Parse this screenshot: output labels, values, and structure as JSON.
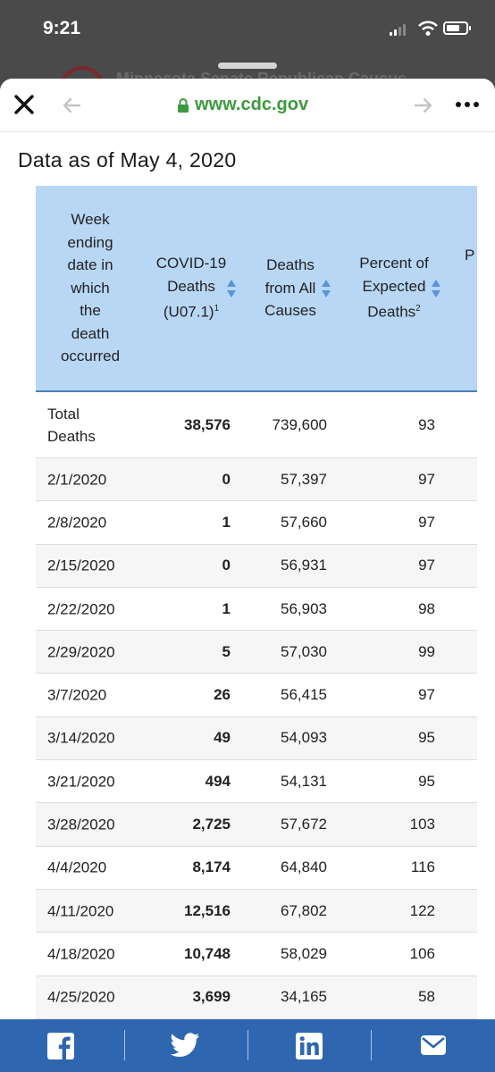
{
  "status_bar": {
    "time": "9:21"
  },
  "background_page": {
    "title": "Minnesota Senate Republican Caucus"
  },
  "browser": {
    "url": "www.cdc.gov"
  },
  "page": {
    "heading": "Data as of May 4, 2020"
  },
  "table": {
    "headers": {
      "week": "Week ending date in which the death occurred",
      "covid": "COVID-19 Deaths (U07.1)",
      "covid_sup": "1",
      "all_causes": "Deaths from All Causes",
      "percent": "Percent of Expected Deaths",
      "percent_sup": "2",
      "partial": "P"
    },
    "rows": [
      {
        "week": "Total Deaths",
        "covid": "38,576",
        "all": "739,600",
        "pct": "93"
      },
      {
        "week": "2/1/2020",
        "covid": "0",
        "all": "57,397",
        "pct": "97"
      },
      {
        "week": "2/8/2020",
        "covid": "1",
        "all": "57,660",
        "pct": "97"
      },
      {
        "week": "2/15/2020",
        "covid": "0",
        "all": "56,931",
        "pct": "97"
      },
      {
        "week": "2/22/2020",
        "covid": "1",
        "all": "56,903",
        "pct": "98"
      },
      {
        "week": "2/29/2020",
        "covid": "5",
        "all": "57,030",
        "pct": "99"
      },
      {
        "week": "3/7/2020",
        "covid": "26",
        "all": "56,415",
        "pct": "97"
      },
      {
        "week": "3/14/2020",
        "covid": "49",
        "all": "54,093",
        "pct": "95"
      },
      {
        "week": "3/21/2020",
        "covid": "494",
        "all": "54,131",
        "pct": "95"
      },
      {
        "week": "3/28/2020",
        "covid": "2,725",
        "all": "57,672",
        "pct": "103"
      },
      {
        "week": "4/4/2020",
        "covid": "8,174",
        "all": "64,840",
        "pct": "116"
      },
      {
        "week": "4/11/2020",
        "covid": "12,516",
        "all": "67,802",
        "pct": "122"
      },
      {
        "week": "4/18/2020",
        "covid": "10,748",
        "all": "58,029",
        "pct": "106"
      },
      {
        "week": "4/25/2020",
        "covid": "3,699",
        "all": "34,165",
        "pct": "58"
      }
    ]
  },
  "share_bar": {
    "items": [
      {
        "icon": "facebook-icon"
      },
      {
        "icon": "twitter-icon"
      },
      {
        "icon": "linkedin-icon"
      },
      {
        "icon": "email-icon"
      }
    ]
  },
  "colors": {
    "header_bg": "#b8d7f5",
    "url_green": "#3d9a3f",
    "share_bar_bg": "#2f66b0"
  }
}
